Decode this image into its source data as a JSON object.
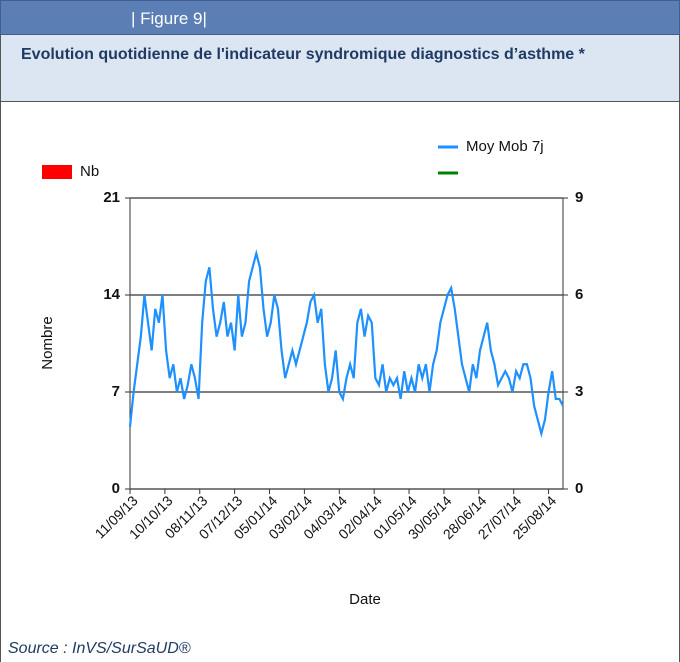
{
  "header": {
    "figure": "| Figure 9|",
    "title": "Evolution quotidienne de l'indicateur syndromique diagnostics d’asthme *",
    "source": "Source : InVS/SurSaUD®"
  },
  "chart_data": {
    "type": "line",
    "x_label": "Date",
    "y_label": "Nombre",
    "xlim": [
      0,
      360
    ],
    "xticks": [
      {
        "value": 0,
        "label": "11/09/13"
      },
      {
        "value": 29,
        "label": "10/10/13"
      },
      {
        "value": 58,
        "label": "08/11/13"
      },
      {
        "value": 87,
        "label": "07/12/13"
      },
      {
        "value": 116,
        "label": "05/01/14"
      },
      {
        "value": 145,
        "label": "03/02/14"
      },
      {
        "value": 174,
        "label": "04/03/14"
      },
      {
        "value": 203,
        "label": "02/04/14"
      },
      {
        "value": 232,
        "label": "01/05/14"
      },
      {
        "value": 261,
        "label": "30/05/14"
      },
      {
        "value": 290,
        "label": "28/06/14"
      },
      {
        "value": 319,
        "label": "27/07/14"
      },
      {
        "value": 348,
        "label": "25/08/14"
      }
    ],
    "ylim": [
      0,
      21
    ],
    "yticks": [
      0,
      7,
      14,
      21
    ],
    "y2lim": [
      0,
      9
    ],
    "y2ticks": [
      0,
      3,
      6,
      9
    ],
    "grid": true,
    "x": [
      0,
      3,
      6,
      9,
      12,
      15,
      18,
      21,
      24,
      27,
      30,
      33,
      36,
      39,
      42,
      45,
      48,
      51,
      54,
      57,
      60,
      63,
      66,
      69,
      72,
      75,
      78,
      81,
      84,
      87,
      90,
      93,
      96,
      99,
      102,
      105,
      108,
      111,
      114,
      117,
      120,
      123,
      126,
      129,
      132,
      135,
      138,
      141,
      144,
      147,
      150,
      153,
      156,
      159,
      162,
      165,
      168,
      171,
      174,
      177,
      180,
      183,
      186,
      189,
      192,
      195,
      198,
      201,
      204,
      207,
      210,
      213,
      216,
      219,
      222,
      225,
      228,
      231,
      234,
      237,
      240,
      243,
      246,
      249,
      252,
      255,
      258,
      261,
      264,
      267,
      270,
      273,
      276,
      279,
      282,
      285,
      288,
      291,
      294,
      297,
      300,
      303,
      306,
      309,
      312,
      315,
      318,
      321,
      324,
      327,
      330,
      333,
      336,
      339,
      342,
      345,
      348,
      351,
      354,
      357,
      360
    ],
    "series": [
      {
        "name": "Moy Mob 7j",
        "color": "#1e90ff",
        "values": [
          4.5,
          7,
          9,
          11,
          14,
          12,
          10,
          13,
          12,
          14,
          10,
          8,
          9,
          7,
          8,
          6.5,
          7.5,
          9,
          8,
          6.5,
          12,
          15,
          16,
          13,
          11,
          12,
          13.5,
          11,
          12,
          10,
          14,
          11,
          12,
          15,
          16,
          17,
          16,
          13,
          11,
          12,
          14,
          13,
          10,
          8,
          9,
          10,
          9,
          10,
          11,
          12,
          13.5,
          14,
          12,
          13,
          9,
          7,
          8,
          10,
          7,
          6.5,
          8,
          9,
          8,
          12,
          13,
          11,
          12.5,
          12,
          8,
          7.5,
          9,
          7,
          8,
          7.5,
          8,
          6.5,
          8.5,
          7,
          8,
          7,
          9,
          8,
          9,
          7,
          9,
          10,
          12,
          13,
          14,
          14.5,
          13,
          11,
          9,
          8,
          7,
          9,
          8,
          10,
          11,
          12,
          10,
          9,
          7.5,
          8,
          8.5,
          8,
          7,
          8.5,
          8,
          9,
          9,
          8,
          6,
          5,
          4,
          5,
          7,
          8.5,
          6.5,
          6.5,
          6
        ]
      }
    ],
    "extra_legend": [
      {
        "name": "Nb",
        "color": "#ff0000"
      },
      {
        "color": "#008000"
      }
    ]
  }
}
